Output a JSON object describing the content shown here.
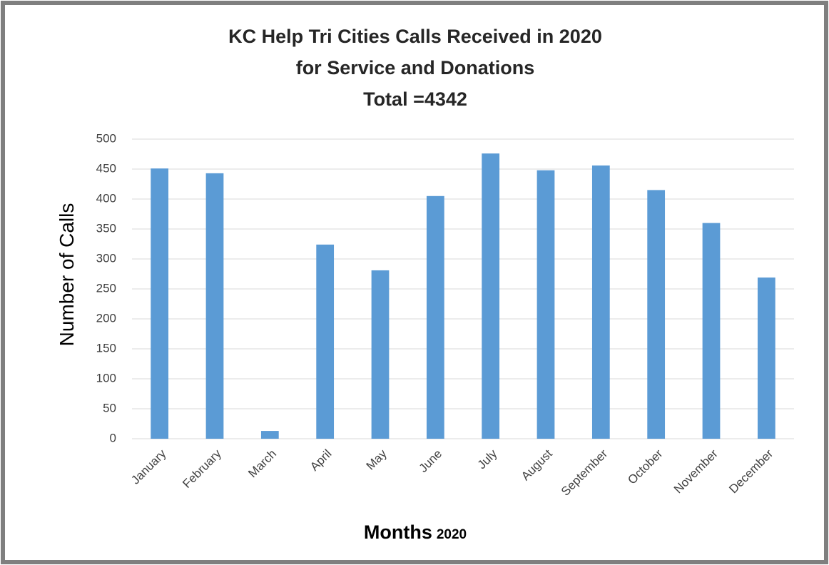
{
  "chart_data": {
    "type": "bar",
    "title": [
      "KC Help Tri Cities Calls Received in 2020",
      "for Service and Donations",
      "Total =4342"
    ],
    "ylabel": "Number of Calls",
    "xlabel": {
      "main": "Months",
      "year": "2020"
    },
    "categories": [
      "January",
      "February",
      "March",
      "April",
      "May",
      "June",
      "July",
      "August",
      "September",
      "October",
      "November",
      "December"
    ],
    "values": [
      451,
      443,
      13,
      324,
      281,
      405,
      476,
      448,
      456,
      415,
      360,
      269
    ],
    "color": "#5b9bd5",
    "ylim": [
      0,
      500
    ],
    "yticks": [
      0,
      50,
      100,
      150,
      200,
      250,
      300,
      350,
      400,
      450,
      500
    ],
    "grid": true
  }
}
